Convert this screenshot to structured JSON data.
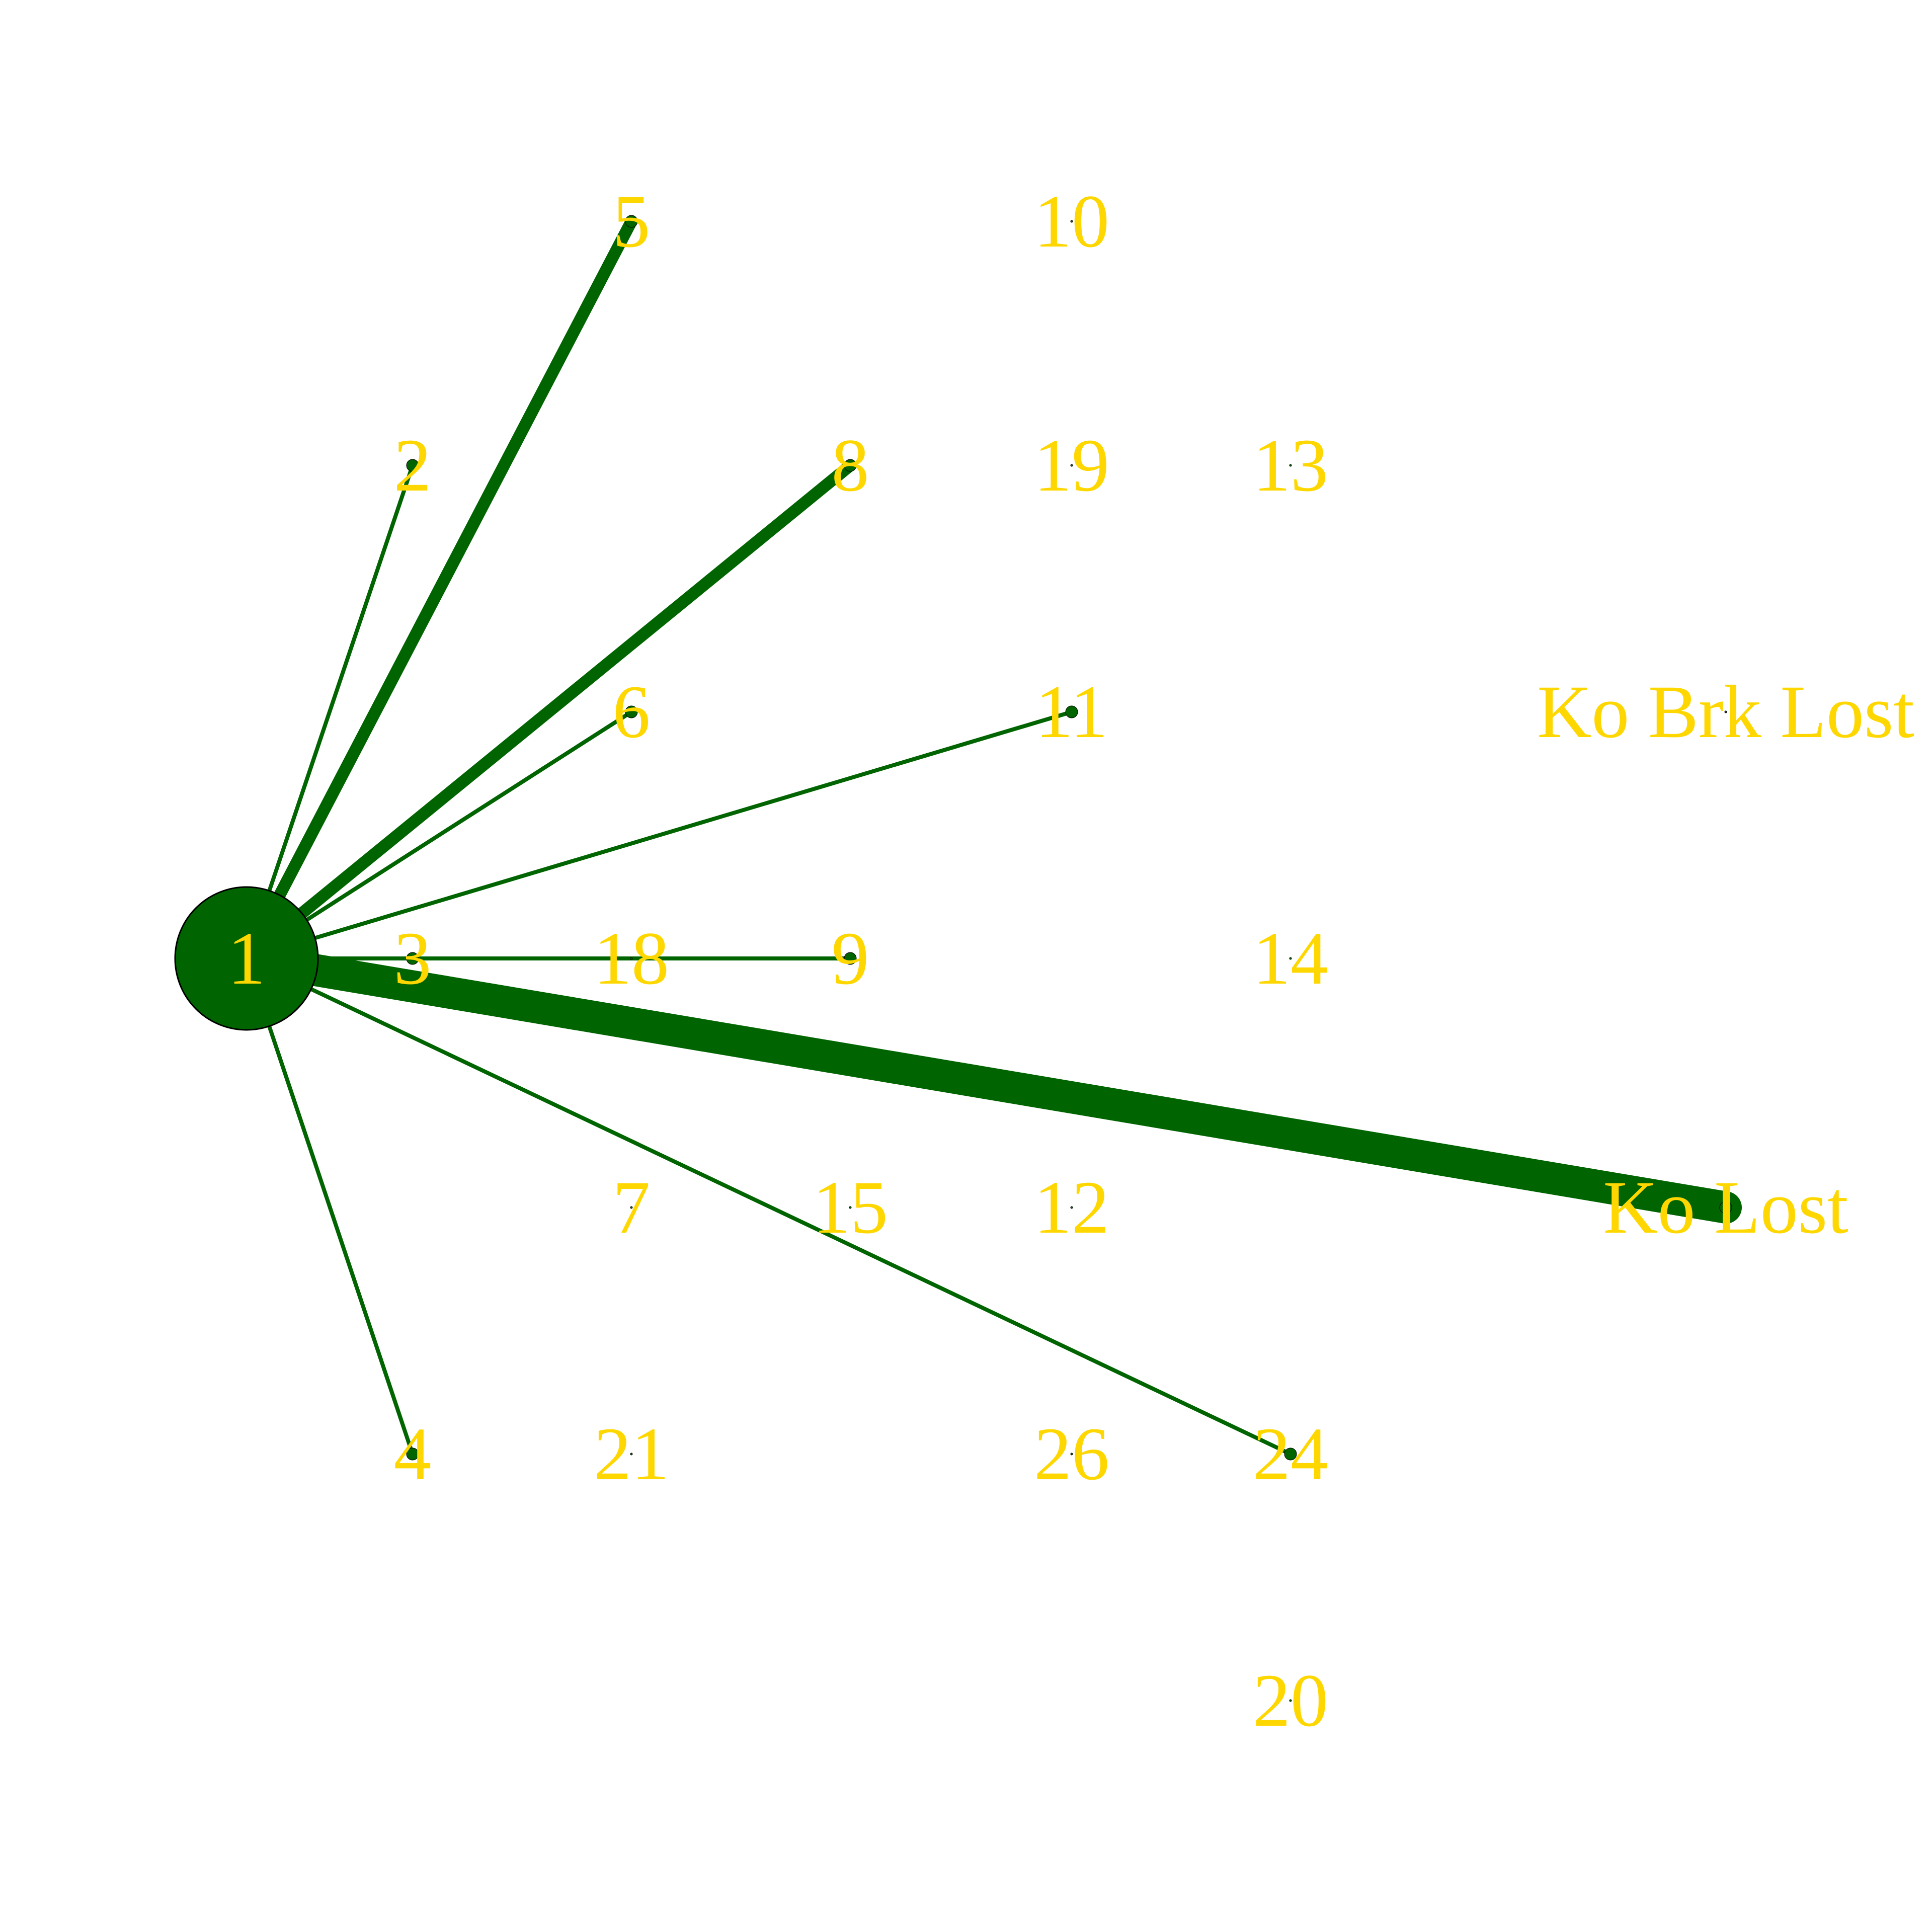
{
  "colors": {
    "edge": "#006400",
    "node_fill": "#006400",
    "node_stroke": "#000000",
    "label": "#FFD700",
    "background": "#FFFFFF"
  },
  "nodes": [
    {
      "id": "1",
      "label": "1"
    },
    {
      "id": "2",
      "label": "2"
    },
    {
      "id": "3",
      "label": "3"
    },
    {
      "id": "4",
      "label": "4"
    },
    {
      "id": "5",
      "label": "5"
    },
    {
      "id": "6",
      "label": "6"
    },
    {
      "id": "7",
      "label": "7"
    },
    {
      "id": "8",
      "label": "8"
    },
    {
      "id": "9",
      "label": "9"
    },
    {
      "id": "10",
      "label": "10"
    },
    {
      "id": "11",
      "label": "11"
    },
    {
      "id": "12",
      "label": "12"
    },
    {
      "id": "13",
      "label": "13"
    },
    {
      "id": "14",
      "label": "14"
    },
    {
      "id": "15",
      "label": "15"
    },
    {
      "id": "18",
      "label": "18"
    },
    {
      "id": "19",
      "label": "19"
    },
    {
      "id": "20",
      "label": "20"
    },
    {
      "id": "21",
      "label": "21"
    },
    {
      "id": "24",
      "label": "24"
    },
    {
      "id": "26",
      "label": "26"
    },
    {
      "id": "ko_brk_lost",
      "label": "Ko Brk Lost"
    },
    {
      "id": "ko_lost",
      "label": "Ko Lost"
    }
  ],
  "edges": [
    {
      "source": "1",
      "target": "2",
      "weight": 1
    },
    {
      "source": "1",
      "target": "5",
      "weight": 3
    },
    {
      "source": "1",
      "target": "8",
      "weight": 3
    },
    {
      "source": "1",
      "target": "6",
      "weight": 1
    },
    {
      "source": "1",
      "target": "11",
      "weight": 1
    },
    {
      "source": "1",
      "target": "3",
      "weight": 1
    },
    {
      "source": "1",
      "target": "9",
      "weight": 1
    },
    {
      "source": "1",
      "target": "ko_lost",
      "weight": 8
    },
    {
      "source": "1",
      "target": "24",
      "weight": 1
    },
    {
      "source": "1",
      "target": "4",
      "weight": 1
    }
  ]
}
